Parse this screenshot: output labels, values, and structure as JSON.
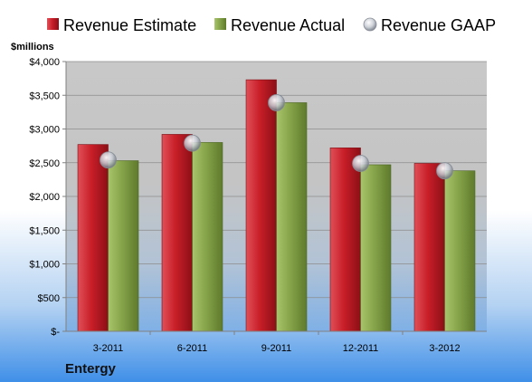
{
  "colors": {
    "estimate": "#c81e28",
    "actual": "#86a44a",
    "gaap": "#b8bcc4"
  },
  "chart_data": {
    "type": "bar",
    "company": "Entergy",
    "ylabel": "$millions",
    "categories": [
      "3-2011",
      "6-2011",
      "9-2011",
      "12-2011",
      "3-2012"
    ],
    "series": [
      {
        "name": "Revenue Estimate",
        "values": [
          2770,
          2920,
          3730,
          2720,
          2490
        ]
      },
      {
        "name": "Revenue Actual",
        "values": [
          2530,
          2800,
          3390,
          2470,
          2380
        ]
      },
      {
        "name": "Revenue GAAP",
        "values": [
          2540,
          2790,
          3390,
          2490,
          2380
        ]
      }
    ],
    "ylim": [
      0,
      4000
    ],
    "yticks": [
      0,
      500,
      1000,
      1500,
      2000,
      2500,
      3000,
      3500,
      4000
    ],
    "ytick_labels": [
      "$-",
      "$500",
      "$1,000",
      "$1,500",
      "$2,000",
      "$2,500",
      "$3,000",
      "$3,500",
      "$4,000"
    ],
    "grid": true,
    "legend_position": "top"
  }
}
